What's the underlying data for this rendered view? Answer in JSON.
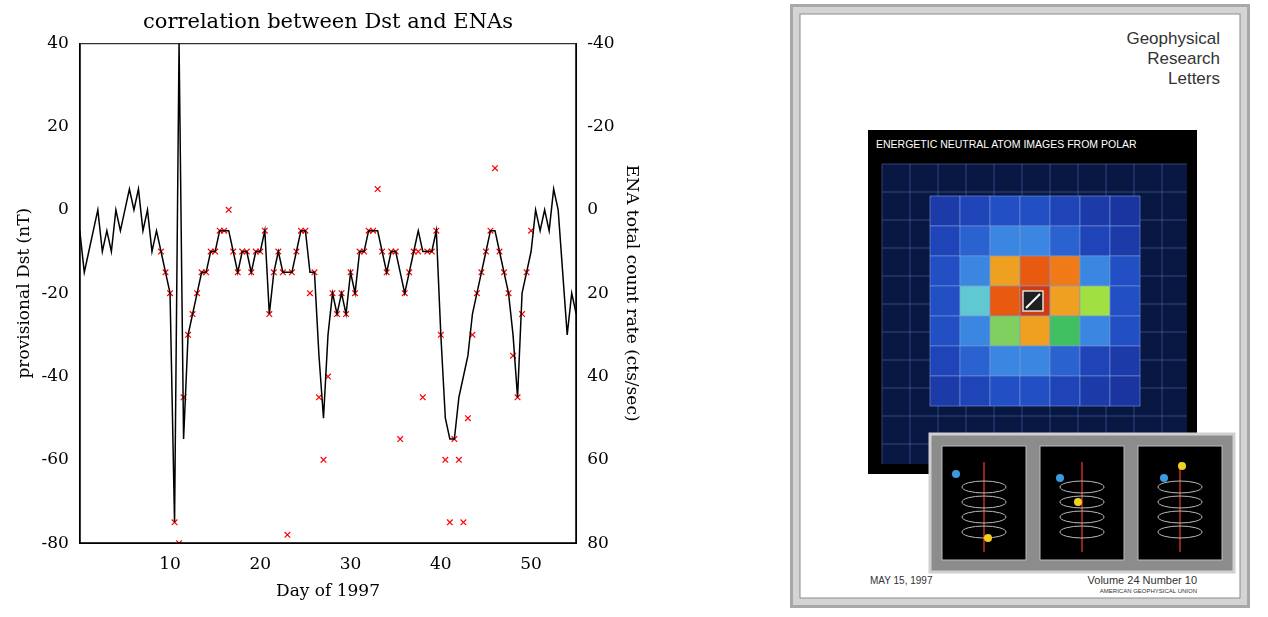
{
  "chart_data": {
    "type": "line",
    "title": "correlation between Dst and ENAs",
    "x_label": "Day of 1997",
    "y_label": "provisional Dst (nT)",
    "y2_label": "ENA total count rate (cts/sec)",
    "xlim": [
      0,
      55
    ],
    "xticks": [
      10,
      20,
      30,
      40,
      50
    ],
    "ylim": [
      -80,
      40
    ],
    "yticks": [
      -80,
      -60,
      -40,
      -20,
      0,
      20,
      40
    ],
    "y2lim": [
      80,
      -40
    ],
    "y2ticks": [
      80,
      60,
      40,
      20,
      0,
      -20,
      -40
    ],
    "grid": false,
    "x": [
      0,
      0.5,
      1,
      1.5,
      2,
      2.5,
      3,
      3.5,
      4,
      4.5,
      5,
      5.5,
      6,
      6.5,
      7,
      7.5,
      8,
      8.5,
      9,
      9.5,
      10,
      10.5,
      11,
      11.5,
      12,
      12.5,
      13,
      13.5,
      14,
      14.5,
      15,
      15.5,
      16,
      16.5,
      17,
      17.5,
      18,
      18.5,
      19,
      19.5,
      20,
      20.5,
      21,
      21.5,
      22,
      22.5,
      23,
      23.5,
      24,
      24.5,
      25,
      25.5,
      26,
      26.5,
      27,
      27.5,
      28,
      28.5,
      29,
      29.5,
      30,
      30.5,
      31,
      31.5,
      32,
      32.5,
      33,
      33.5,
      34,
      34.5,
      35,
      35.5,
      36,
      36.5,
      37,
      37.5,
      38,
      38.5,
      39,
      39.5,
      40,
      40.5,
      41,
      41.5,
      42,
      42.5,
      43,
      43.5,
      44,
      44.5,
      45,
      45.5,
      46,
      46.5,
      47,
      47.5,
      48,
      48.5,
      49,
      49.5,
      50,
      50.5,
      51,
      51.5,
      52,
      52.5,
      53,
      53.5,
      54,
      54.5,
      55
    ],
    "series": [
      {
        "type": "line",
        "color": "#000000",
        "line_style": "solid",
        "marker": "none",
        "values": [
          -5,
          -15,
          -10,
          -5,
          0,
          -10,
          -5,
          -10,
          0,
          -5,
          0,
          5,
          0,
          5,
          -5,
          0,
          -10,
          -5,
          -10,
          -15,
          -20,
          -75,
          40,
          -55,
          -30,
          -25,
          -20,
          -15,
          -15,
          -10,
          -10,
          -5,
          -5,
          -5,
          -10,
          -15,
          -10,
          -10,
          -15,
          -10,
          -10,
          -5,
          -25,
          -15,
          -10,
          -15,
          -15,
          -15,
          -10,
          -5,
          -5,
          -15,
          -15,
          -35,
          -50,
          -30,
          -20,
          -25,
          -20,
          -25,
          -15,
          -20,
          -10,
          -10,
          -5,
          -5,
          -5,
          -10,
          -15,
          -10,
          -10,
          -15,
          -20,
          -15,
          -10,
          -5,
          -10,
          -10,
          -10,
          -5,
          -30,
          -50,
          -55,
          -55,
          -45,
          -40,
          -35,
          -25,
          -20,
          -15,
          -10,
          -5,
          -5,
          -10,
          -15,
          -20,
          -30,
          -45,
          -20,
          -15,
          -10,
          0,
          -5,
          0,
          -5,
          5,
          0,
          -15,
          -30,
          -20,
          -25
        ]
      },
      {
        "type": "scatter",
        "axis": "y2",
        "color": "#ff0000",
        "marker": "x",
        "values": [
          null,
          null,
          null,
          null,
          null,
          null,
          null,
          null,
          null,
          null,
          null,
          null,
          null,
          null,
          null,
          null,
          null,
          null,
          10,
          15,
          20,
          75,
          80,
          45,
          30,
          25,
          20,
          15,
          15,
          10,
          10,
          5,
          5,
          0,
          10,
          15,
          10,
          10,
          15,
          10,
          10,
          5,
          25,
          15,
          10,
          15,
          78,
          15,
          10,
          5,
          5,
          20,
          15,
          45,
          60,
          40,
          20,
          25,
          20,
          25,
          15,
          20,
          10,
          10,
          5,
          5,
          -5,
          10,
          15,
          10,
          10,
          55,
          20,
          15,
          10,
          10,
          45,
          10,
          10,
          5,
          30,
          60,
          75,
          55,
          60,
          75,
          50,
          30,
          20,
          15,
          10,
          5,
          -10,
          10,
          15,
          20,
          35,
          45,
          25,
          15,
          5,
          null,
          null,
          null,
          null,
          null,
          null,
          null,
          null,
          null,
          null
        ]
      }
    ]
  },
  "cover": {
    "journal": [
      "Geophysical",
      "Research",
      "Letters"
    ],
    "image_title": "ENERGETIC NEUTRAL ATOM IMAGES FROM POLAR",
    "date": "MAY 15, 1997",
    "issue": "Volume 24  Number 10",
    "publisher": "AMERICAN GEOPHYSICAL UNION"
  }
}
